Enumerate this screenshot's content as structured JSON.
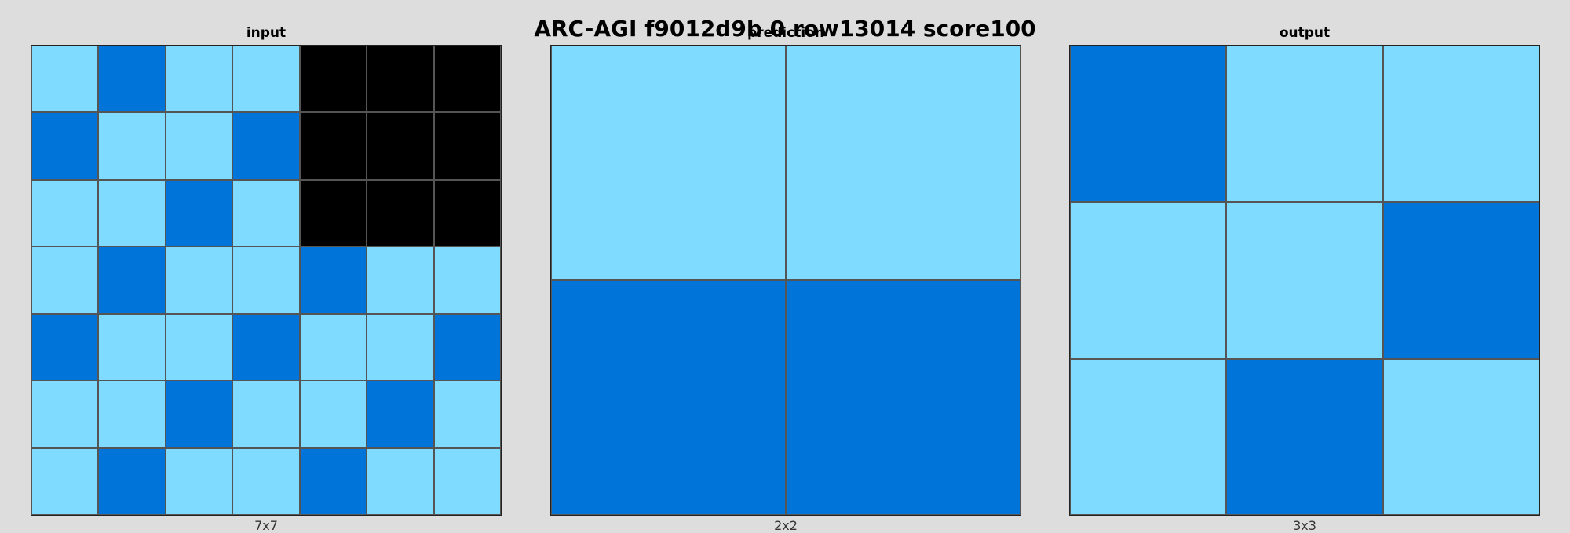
{
  "title": "ARC-AGI f9012d9b 0 row13014 score100",
  "palette": {
    "0": "#000000",
    "1": "#0074d9",
    "8": "#7fdbff"
  },
  "panels": [
    {
      "label": "input",
      "size": "7x7",
      "rows": 7,
      "cols": 7,
      "grid": [
        [
          8,
          1,
          8,
          8,
          0,
          0,
          0
        ],
        [
          1,
          8,
          8,
          1,
          0,
          0,
          0
        ],
        [
          8,
          8,
          1,
          8,
          0,
          0,
          0
        ],
        [
          8,
          1,
          8,
          8,
          1,
          8,
          8
        ],
        [
          1,
          8,
          8,
          1,
          8,
          8,
          1
        ],
        [
          8,
          8,
          1,
          8,
          8,
          1,
          8
        ],
        [
          8,
          1,
          8,
          8,
          1,
          8,
          8
        ]
      ]
    },
    {
      "label": "prediction",
      "size": "2x2",
      "rows": 2,
      "cols": 2,
      "grid": [
        [
          8,
          8
        ],
        [
          1,
          1
        ]
      ]
    },
    {
      "label": "output",
      "size": "3x3",
      "rows": 3,
      "cols": 3,
      "grid": [
        [
          1,
          8,
          8
        ],
        [
          8,
          8,
          1
        ],
        [
          8,
          1,
          8
        ]
      ]
    }
  ]
}
